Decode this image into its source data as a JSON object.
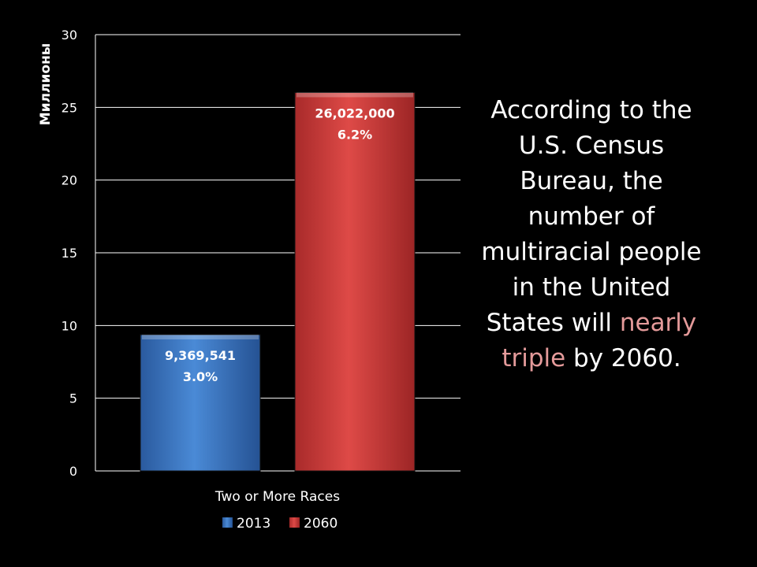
{
  "chart_data": {
    "type": "bar",
    "categories": [
      "Two or More Races"
    ],
    "series": [
      {
        "name": "2013",
        "values": [
          9.369541
        ],
        "label_value": "9,369,541",
        "label_pct": "3.0%",
        "color": "#3a78c6"
      },
      {
        "name": "2060",
        "values": [
          26.022
        ],
        "label_value": "26,022,000",
        "label_pct": "6.2%",
        "color": "#cc3b3b"
      }
    ],
    "ylabel": "Миллионы",
    "ylim": [
      0,
      30
    ],
    "yticks": [
      0,
      5,
      10,
      15,
      20,
      25,
      30
    ],
    "grid": true,
    "legend": "bottom"
  },
  "note": {
    "before": "According to the U.S. Census Bureau, the number of multiracial people in the United States will ",
    "highlight": "nearly triple",
    "after": " by 2060."
  },
  "colors": {
    "background": "#000000",
    "highlight": "#e49a9a"
  }
}
